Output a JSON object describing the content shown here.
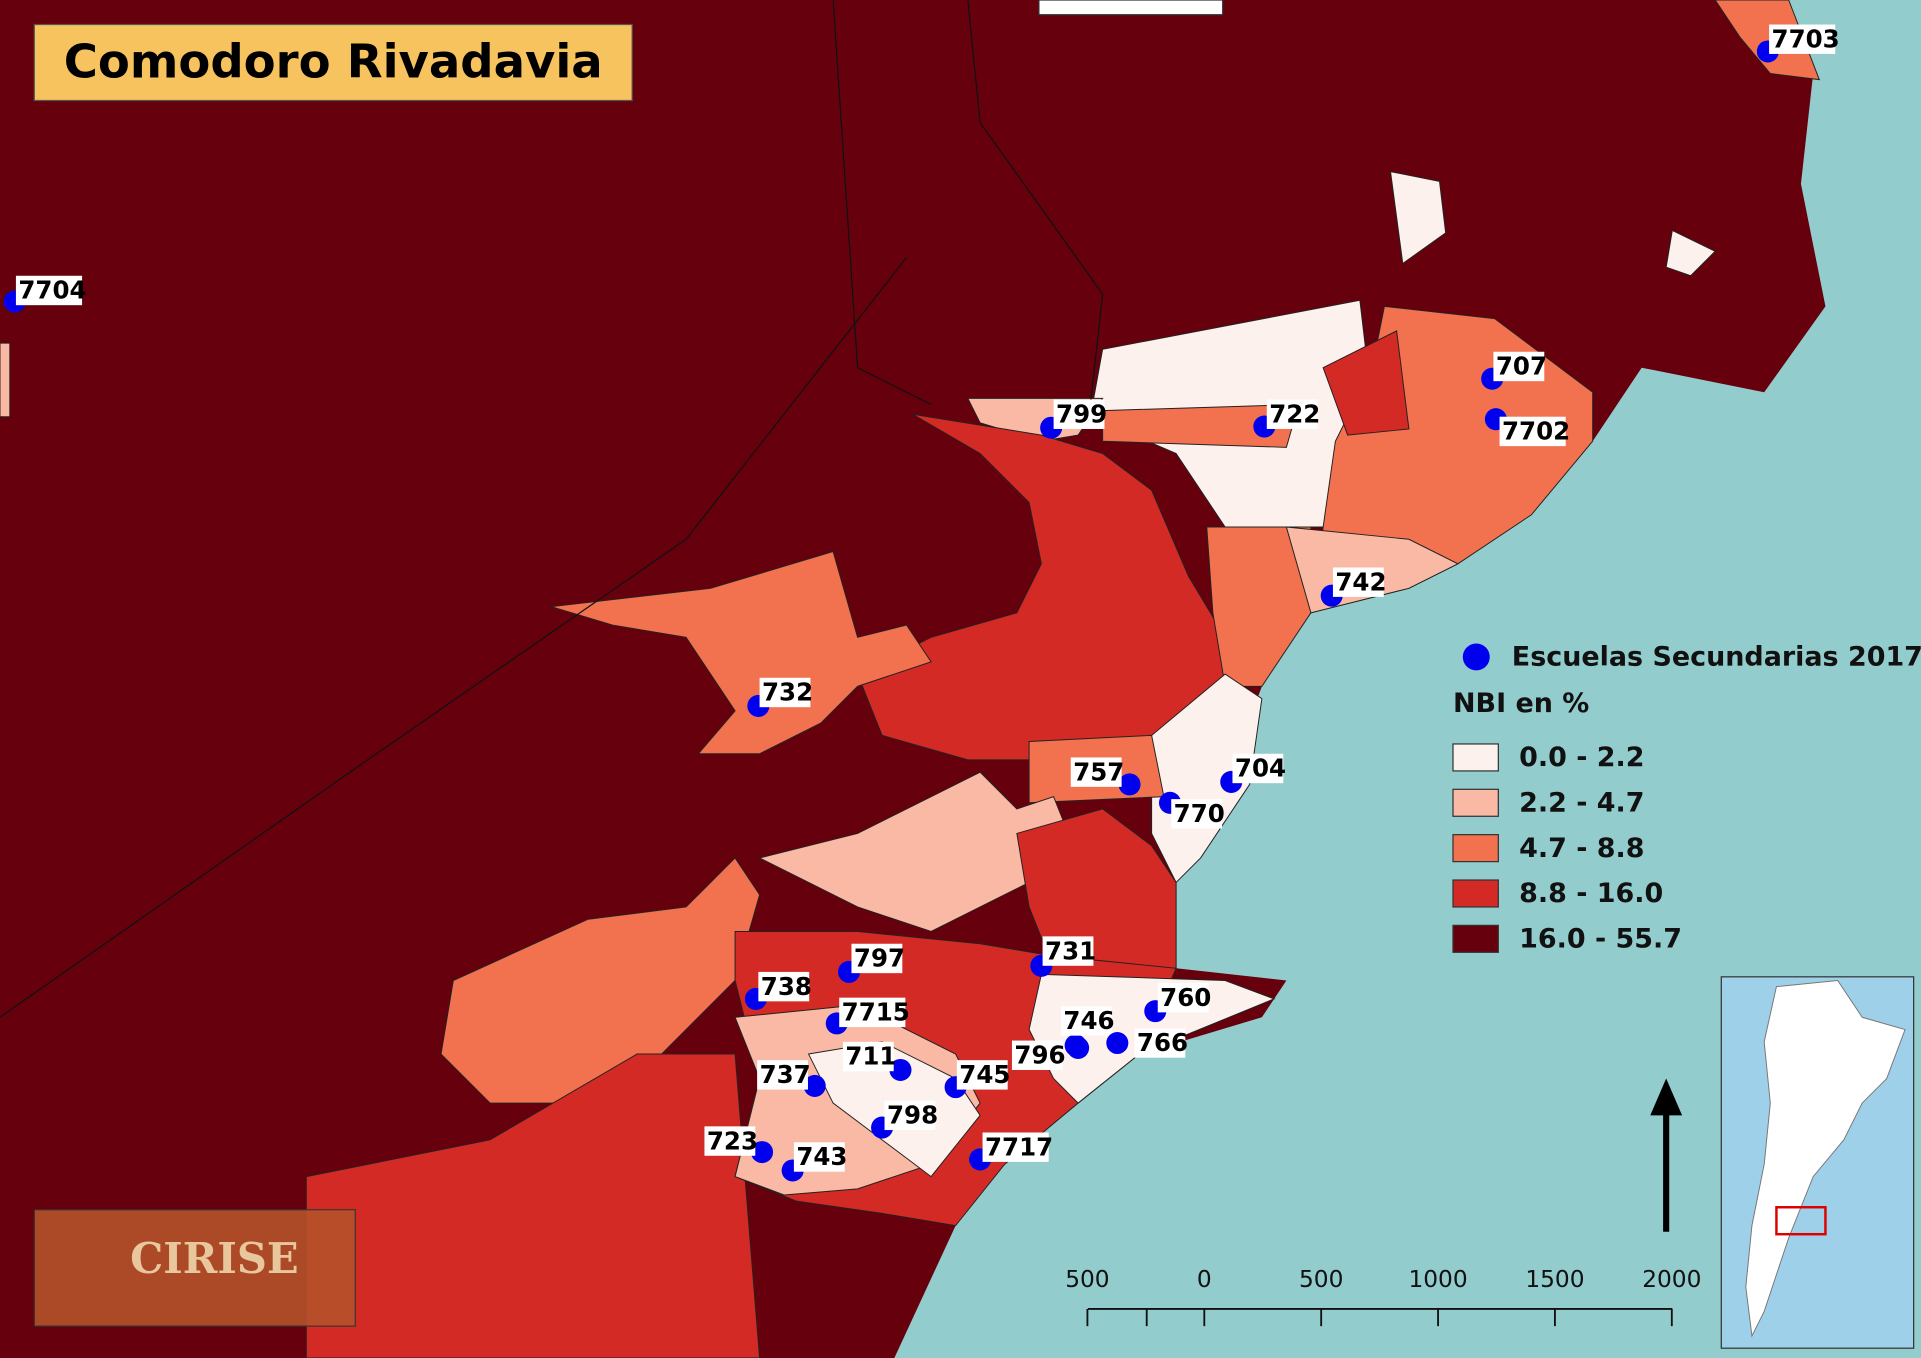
{
  "title": "Comodoro Rivadavia",
  "schools": [
    "7703",
    "7704",
    "707",
    "7702",
    "799",
    "722",
    "742",
    "732",
    "757",
    "770",
    "704",
    "731",
    "797",
    "738",
    "7715",
    "760",
    "746",
    "766",
    "796",
    "711",
    "737",
    "745",
    "798",
    "723",
    "743",
    "7717"
  ],
  "legend": {
    "schools": "Escuelas Secundarias 2017",
    "title": "NBI en %",
    "classes": [
      {
        "label": "0.0 - 2.2",
        "color": "#fdf1ee"
      },
      {
        "label": "2.2 - 4.7",
        "color": "#f9b9a4"
      },
      {
        "label": "4.7 - 8.8",
        "color": "#f2714f"
      },
      {
        "label": "8.8 - 16.0",
        "color": "#d42a25"
      },
      {
        "label": "16.0 - 55.7",
        "color": "#67000d"
      }
    ]
  },
  "scale_ticks": [
    {
      "value": -500,
      "label": "500"
    },
    0,
    500,
    1000,
    1500,
    2000
  ],
  "logo": "CIRISE"
}
